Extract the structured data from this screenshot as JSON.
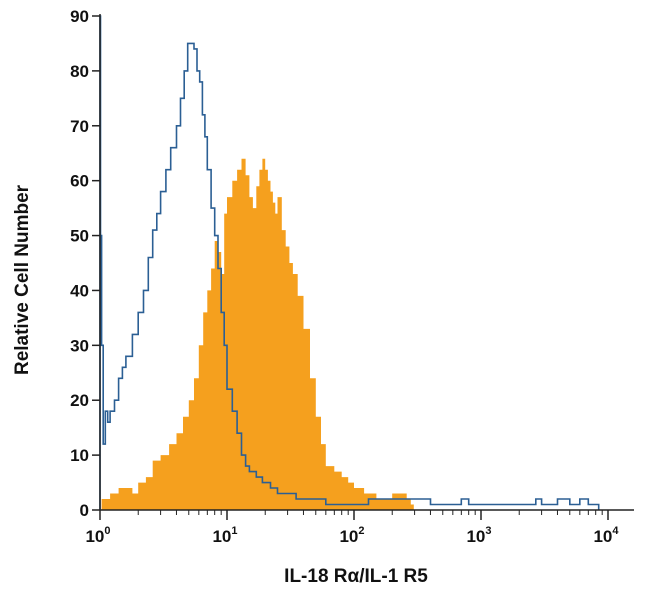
{
  "chart_data": {
    "type": "histogram",
    "title": "",
    "xlabel": "IL-18 Rα/IL-1 R5",
    "ylabel": "Relative Cell Number",
    "xscale": "log",
    "xlim": [
      1,
      10000
    ],
    "ylim": [
      0,
      90
    ],
    "yticks": [
      0,
      10,
      20,
      30,
      40,
      50,
      60,
      70,
      80,
      90
    ],
    "xticks": [
      1,
      10,
      100,
      1000,
      10000
    ],
    "xtick_labels": [
      {
        "base": "10",
        "exp": "0"
      },
      {
        "base": "10",
        "exp": "1"
      },
      {
        "base": "10",
        "exp": "2"
      },
      {
        "base": "10",
        "exp": "3"
      },
      {
        "base": "10",
        "exp": "4"
      }
    ],
    "grid": false,
    "legend": "none",
    "series": [
      {
        "style": "filled",
        "color": "#f5a01e",
        "x": [
          1.03,
          1.2,
          1.4,
          1.6,
          1.8,
          2.0,
          2.3,
          2.6,
          3.0,
          3.5,
          4.0,
          4.5,
          5.0,
          5.5,
          6.0,
          6.5,
          7.0,
          7.5,
          8.0,
          8.5,
          9.0,
          9.5,
          10,
          11,
          12,
          13,
          14,
          15,
          16,
          17,
          18,
          19,
          20,
          21,
          22,
          23,
          24,
          25,
          27,
          29,
          31,
          33,
          36,
          40,
          45,
          50,
          55,
          60,
          70,
          80,
          90,
          100,
          120,
          150,
          180,
          200,
          230,
          260,
          280
        ],
        "y": [
          2,
          3,
          4,
          4,
          3,
          5,
          6,
          9,
          10,
          12,
          14,
          17,
          20,
          24,
          30,
          36,
          40,
          44,
          49,
          47,
          43,
          54,
          57,
          60,
          62,
          64,
          61,
          57,
          55,
          59,
          62,
          64,
          62,
          60,
          58,
          56,
          54,
          57,
          51,
          48,
          45,
          43,
          39,
          33,
          24,
          17,
          12,
          8,
          7,
          6,
          5,
          4,
          3,
          2,
          2,
          3,
          3,
          2,
          1
        ]
      },
      {
        "style": "outline",
        "color": "#2b5f94",
        "x": [
          1.0,
          1.01,
          1.03,
          1.06,
          1.1,
          1.15,
          1.2,
          1.3,
          1.4,
          1.5,
          1.6,
          1.8,
          2.0,
          2.2,
          2.4,
          2.6,
          2.8,
          3.0,
          3.3,
          3.6,
          4.0,
          4.3,
          4.6,
          4.9,
          5.2,
          5.5,
          5.8,
          6.1,
          6.4,
          6.7,
          7.0,
          7.5,
          8.0,
          8.5,
          9.0,
          9.5,
          10,
          11,
          12,
          13,
          14,
          15,
          17,
          19,
          22,
          25,
          30,
          35,
          40,
          50,
          60,
          80,
          100,
          130,
          160,
          200,
          300,
          400,
          600,
          700,
          800,
          1000,
          2000,
          2700,
          3000,
          4000,
          5000,
          6000,
          7000,
          8000
        ],
        "y": [
          90,
          50,
          30,
          12,
          18,
          16,
          18,
          20,
          24,
          26,
          28,
          32,
          36,
          40,
          46,
          51,
          54,
          58,
          62,
          66,
          70,
          75,
          80,
          85,
          85,
          84,
          80,
          78,
          72,
          68,
          62,
          55,
          50,
          44,
          36,
          30,
          22,
          18,
          14,
          10,
          8,
          7,
          6,
          5,
          4,
          3,
          3,
          2,
          2,
          2,
          1,
          1,
          1,
          2,
          2,
          2,
          2,
          1,
          1,
          2,
          1,
          1,
          1,
          2,
          1,
          2,
          1,
          2,
          1,
          1
        ]
      }
    ]
  }
}
